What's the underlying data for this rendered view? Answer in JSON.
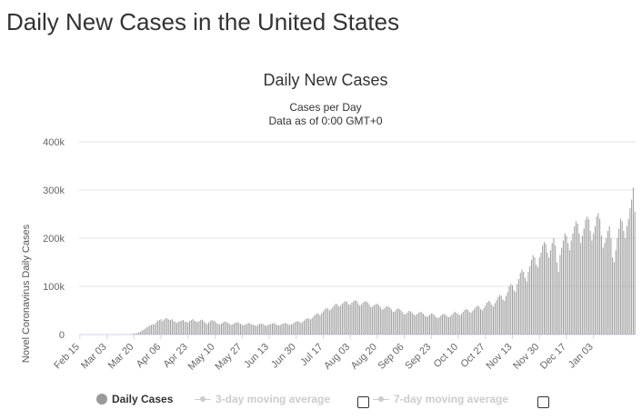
{
  "page": {
    "title": "Daily New Cases in the United States"
  },
  "chart_data": {
    "type": "bar",
    "title": "Daily New Cases",
    "subtitle_line1": "Cases per Day",
    "subtitle_line2": "Data as of 0:00 GMT+0",
    "xlabel": "",
    "ylabel": "Novel Coronavirus Daily Cases",
    "ylim": [
      0,
      400000
    ],
    "yticks": [
      0,
      100000,
      200000,
      300000,
      400000
    ],
    "ytick_labels": [
      "0",
      "100k",
      "200k",
      "300k",
      "400k"
    ],
    "xtick_labels": [
      "Feb 15",
      "Mar 03",
      "Mar 20",
      "Apr 06",
      "Apr 23",
      "May 10",
      "May 27",
      "Jun 13",
      "Jun 30",
      "Jul 17",
      "Aug 03",
      "Aug 20",
      "Sep 06",
      "Sep 23",
      "Oct 10",
      "Oct 27",
      "Nov 13",
      "Nov 30",
      "Dec 17",
      "Jan 03"
    ],
    "date_range": [
      "2020-02-15",
      "2021-01-08"
    ],
    "grid": true,
    "legend_position": "bottom",
    "bar_color": "#999999",
    "series": [
      {
        "name": "Daily Cases",
        "values": [
          0,
          0,
          0,
          0,
          0,
          0,
          0,
          0,
          0,
          0,
          0,
          0,
          0,
          0,
          0,
          0,
          0,
          0,
          0,
          0,
          0,
          0,
          0,
          0,
          10,
          20,
          30,
          50,
          70,
          100,
          200,
          350,
          600,
          1000,
          1500,
          2200,
          3000,
          4500,
          6000,
          8000,
          10000,
          12000,
          14500,
          17000,
          19000,
          20000,
          22000,
          21000,
          25000,
          29000,
          30000,
          32000,
          28000,
          31000,
          34000,
          33000,
          31000,
          30000,
          32000,
          28000,
          26000,
          24000,
          27000,
          28000,
          29000,
          30000,
          27000,
          26000,
          25000,
          28000,
          30000,
          32000,
          29000,
          27000,
          26000,
          28000,
          30000,
          31000,
          27000,
          24000,
          22000,
          25000,
          28000,
          30000,
          29000,
          27000,
          24000,
          22000,
          21000,
          23000,
          25000,
          27000,
          26000,
          24000,
          22000,
          20000,
          21000,
          23000,
          25000,
          26000,
          24000,
          22000,
          20000,
          19000,
          21000,
          22000,
          24000,
          23000,
          21000,
          20000,
          19000,
          18000,
          20000,
          22000,
          23000,
          22000,
          20000,
          18000,
          19000,
          21000,
          22000,
          23000,
          24000,
          22000,
          20000,
          19000,
          20000,
          22000,
          23000,
          24000,
          23000,
          21000,
          20000,
          21000,
          23000,
          25000,
          27000,
          28000,
          26000,
          24000,
          26000,
          29000,
          32000,
          34000,
          33000,
          31000,
          34000,
          38000,
          41000,
          44000,
          43000,
          40000,
          44000,
          48000,
          52000,
          55000,
          54000,
          50000,
          53000,
          57000,
          61000,
          64000,
          62000,
          58000,
          60000,
          64000,
          67000,
          70000,
          68000,
          63000,
          62000,
          66000,
          69000,
          71000,
          70000,
          65000,
          60000,
          62000,
          66000,
          68000,
          69000,
          67000,
          62000,
          57000,
          58000,
          61000,
          63000,
          64000,
          61000,
          57000,
          52000,
          53000,
          56000,
          59000,
          58000,
          56000,
          52000,
          47000,
          48000,
          52000,
          54000,
          53000,
          50000,
          46000,
          42000,
          43000,
          46000,
          49000,
          48000,
          45000,
          42000,
          40000,
          42000,
          45000,
          47000,
          46000,
          43000,
          39000,
          37000,
          38000,
          41000,
          44000,
          43000,
          40000,
          36000,
          34000,
          36000,
          39000,
          42000,
          43000,
          41000,
          38000,
          36000,
          38000,
          41000,
          45000,
          47000,
          45000,
          42000,
          40000,
          43000,
          47000,
          51000,
          53000,
          51000,
          47000,
          45000,
          49000,
          53000,
          57000,
          60000,
          58000,
          53000,
          50000,
          55000,
          60000,
          66000,
          70000,
          68000,
          62000,
          58000,
          65000,
          71000,
          78000,
          82000,
          80000,
          73000,
          70000,
          80000,
          88000,
          100000,
          105000,
          102000,
          92000,
          88000,
          105000,
          115000,
          128000,
          135000,
          130000,
          118000,
          110000,
          130000,
          142000,
          155000,
          165000,
          160000,
          145000,
          140000,
          160000,
          170000,
          185000,
          192000,
          188000,
          170000,
          160000,
          175000,
          190000,
          200000,
          185000,
          150000,
          130000,
          165000,
          180000,
          195000,
          210000,
          205000,
          190000,
          175000,
          195000,
          210000,
          225000,
          235000,
          230000,
          210000,
          190000,
          205000,
          220000,
          238000,
          245000,
          240000,
          215000,
          195000,
          210000,
          225000,
          245000,
          252000,
          240000,
          205000,
          180000,
          190000,
          200000,
          215000,
          225000,
          200000,
          160000,
          150000,
          175000,
          200000,
          220000,
          240000,
          235000,
          215000,
          200000,
          225000,
          240000,
          262000,
          280000,
          305000,
          255000
        ]
      }
    ],
    "disabled_series": [
      "3-day moving average",
      "7-day moving average"
    ]
  },
  "legend": {
    "daily_cases": "Daily Cases",
    "ma3": "3-day moving average",
    "ma7": "7-day moving average"
  },
  "colors": {
    "bar": "#999999",
    "grid": "#e6e6e6",
    "axis": "#ccd6eb",
    "inactive": "#cccccc",
    "text": "#333333"
  }
}
